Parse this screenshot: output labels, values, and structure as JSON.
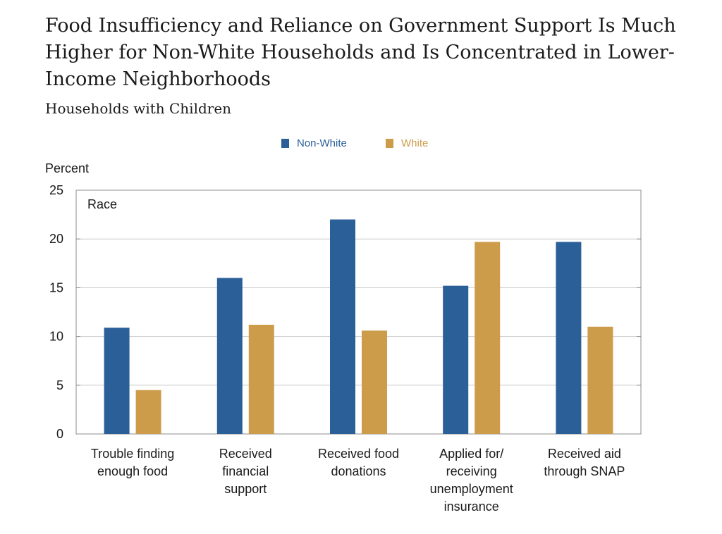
{
  "title": "Food Insufficiency and Reliance on Government Support Is Much Higher for Non-White Households and Is Concentrated in Lower-Income Neighborhoods",
  "subtitle": "Households with Children",
  "panel_label": "Race",
  "colors": {
    "non_white": "#2b5f98",
    "white": "#cc9c4b",
    "grid": "#c8c8c8",
    "frame": "#8c8c8c",
    "text": "#1a1a1a"
  },
  "chart_data": {
    "type": "bar",
    "ylabel": "Percent",
    "ylim": [
      0,
      25
    ],
    "yticks": [
      0,
      5,
      10,
      15,
      20,
      25
    ],
    "grid": true,
    "legend_position": "top-center",
    "categories": [
      [
        "Trouble finding",
        "enough food"
      ],
      [
        "Received",
        "financial",
        "support"
      ],
      [
        "Received food",
        "donations"
      ],
      [
        "Applied for/",
        "receiving",
        "unemployment",
        "insurance"
      ],
      [
        "Received aid",
        "through SNAP"
      ]
    ],
    "series": [
      {
        "name": "Non-White",
        "values": [
          10.9,
          16.0,
          22.0,
          15.2,
          19.7
        ]
      },
      {
        "name": "White",
        "values": [
          4.5,
          11.2,
          10.6,
          19.7,
          11.0
        ]
      }
    ]
  }
}
